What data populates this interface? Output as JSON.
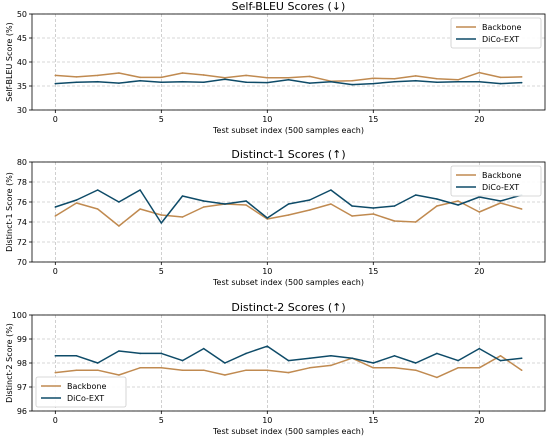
{
  "colors": {
    "Backbone": "#c08a50",
    "DiCo-EXT": "#0e4b68"
  },
  "chart_data": [
    {
      "type": "line",
      "title": "Self-BLEU Scores (↓)",
      "xlabel": "Test subset index (500 samples each)",
      "ylabel": "Self-BLEU Score (%)",
      "xlim": [
        -1.1,
        23.1
      ],
      "ylim": [
        30,
        50
      ],
      "xticks": [
        0,
        5,
        10,
        15,
        20
      ],
      "yticks": [
        30,
        35,
        40,
        45,
        50
      ],
      "ytick_labels": [
        "30",
        "35",
        "40",
        "45",
        "50"
      ],
      "grid": true,
      "legend_position": "top-right",
      "x": [
        0,
        1,
        2,
        3,
        4,
        5,
        6,
        7,
        8,
        9,
        10,
        11,
        12,
        13,
        14,
        15,
        16,
        17,
        18,
        19,
        20,
        21,
        22
      ],
      "series": [
        {
          "name": "Backbone",
          "values": [
            37.2,
            36.9,
            37.2,
            37.7,
            36.8,
            36.8,
            37.7,
            37.3,
            36.7,
            37.2,
            36.7,
            36.7,
            37.0,
            36.0,
            36.1,
            36.6,
            36.5,
            37.1,
            36.5,
            36.3,
            37.8,
            36.8,
            36.9
          ]
        },
        {
          "name": "DiCo-EXT",
          "values": [
            35.5,
            35.8,
            35.9,
            35.6,
            36.1,
            35.8,
            35.9,
            35.8,
            36.4,
            35.8,
            35.7,
            36.3,
            35.6,
            35.9,
            35.3,
            35.5,
            35.9,
            36.1,
            35.8,
            35.9,
            35.9,
            35.5,
            35.7
          ]
        }
      ]
    },
    {
      "type": "line",
      "title": "Distinct-1 Scores (↑)",
      "xlabel": "Test subset index (500 samples each)",
      "ylabel": "Distinct-1 Score (%)",
      "xlim": [
        -1.1,
        23.1
      ],
      "ylim": [
        70,
        80
      ],
      "xticks": [
        0,
        5,
        10,
        15,
        20
      ],
      "yticks": [
        70,
        72,
        74,
        76,
        78,
        80
      ],
      "ytick_labels": [
        "70",
        "72",
        "74",
        "76",
        "78",
        "80"
      ],
      "grid": true,
      "legend_position": "top-right",
      "x": [
        0,
        1,
        2,
        3,
        4,
        5,
        6,
        7,
        8,
        9,
        10,
        11,
        12,
        13,
        14,
        15,
        16,
        17,
        18,
        19,
        20,
        21,
        22
      ],
      "series": [
        {
          "name": "Backbone",
          "values": [
            74.6,
            75.9,
            75.3,
            73.6,
            75.3,
            74.7,
            74.5,
            75.5,
            75.8,
            75.7,
            74.3,
            74.7,
            75.2,
            75.8,
            74.6,
            74.8,
            74.1,
            74.0,
            75.6,
            76.1,
            75.0,
            75.9,
            75.3
          ]
        },
        {
          "name": "DiCo-EXT",
          "values": [
            75.5,
            76.2,
            77.2,
            76.0,
            77.2,
            73.9,
            76.6,
            76.1,
            75.8,
            76.1,
            74.4,
            75.8,
            76.2,
            77.2,
            75.6,
            75.4,
            75.6,
            76.7,
            76.3,
            75.7,
            76.5,
            76.1,
            76.7
          ]
        }
      ]
    },
    {
      "type": "line",
      "title": "Distinct-2 Scores (↑)",
      "xlabel": "Test subset index (500 samples each)",
      "ylabel": "Distinct-2 Score (%)",
      "xlim": [
        -1.1,
        23.1
      ],
      "ylim": [
        96,
        100
      ],
      "xticks": [
        0,
        5,
        10,
        15,
        20
      ],
      "yticks": [
        96,
        97,
        98,
        99,
        100
      ],
      "ytick_labels": [
        "96",
        "97",
        "98",
        "99",
        "100"
      ],
      "grid": true,
      "legend_position": "bottom-left",
      "x": [
        0,
        1,
        2,
        3,
        4,
        5,
        6,
        7,
        8,
        9,
        10,
        11,
        12,
        13,
        14,
        15,
        16,
        17,
        18,
        19,
        20,
        21,
        22
      ],
      "series": [
        {
          "name": "Backbone",
          "values": [
            97.6,
            97.7,
            97.7,
            97.5,
            97.8,
            97.8,
            97.7,
            97.7,
            97.5,
            97.7,
            97.7,
            97.6,
            97.8,
            97.9,
            98.2,
            97.8,
            97.8,
            97.7,
            97.4,
            97.8,
            97.8,
            98.3,
            97.7
          ]
        },
        {
          "name": "DiCo-EXT",
          "values": [
            98.3,
            98.3,
            98.0,
            98.5,
            98.4,
            98.4,
            98.1,
            98.6,
            98.0,
            98.4,
            98.7,
            98.1,
            98.2,
            98.3,
            98.2,
            98.0,
            98.3,
            98.0,
            98.4,
            98.1,
            98.6,
            98.1,
            98.2
          ]
        }
      ]
    }
  ]
}
